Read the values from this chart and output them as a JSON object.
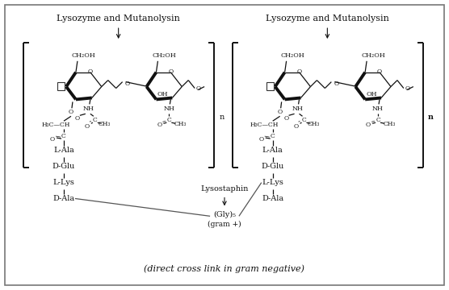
{
  "fig_width": 5.56,
  "fig_height": 3.6,
  "dpi": 100,
  "bg_color": "#ffffff",
  "border_color": "#888888",
  "text_color": "#000000",
  "title_left": "Lysozyme and Mutanolysin",
  "title_right": "Lysozyme and Mutanolysin",
  "bottom_text": "(direct cross link in gram negative)",
  "lala": "L-Ala",
  "dglu": "D-Glu",
  "llys": "L-Lys",
  "dala": "D-Ala",
  "lysostaphin_label": "Lysostaphin",
  "gly5_label": "(Gly)₅",
  "gram_plus": "(gram +)"
}
